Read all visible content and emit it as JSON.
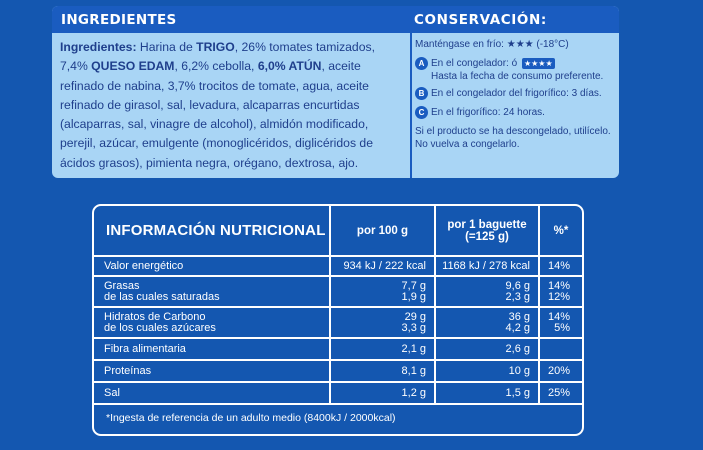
{
  "ingredients": {
    "header": "INGREDIENTES",
    "label": "Ingredientes:",
    "p1": " Harina de ",
    "trigo": "TRIGO",
    "p2": ", 26% tomates tamizados, 7,4% ",
    "queso": "QUESO EDAM",
    "p3": ", 6,2% cebolla, ",
    "atun": "6,0% ATÚN",
    "p4": ", aceite refinado de nabina, 3,7% trocitos de tomate, agua, aceite refinado de girasol, sal, levadura, alcaparras encurtidas (alcaparras, sal, vinagre de alcohol), almidón modificado, perejil, azúcar, emulgente (monoglicéridos, diglicéridos de ácidos grasos), pimienta negra, orégano, dextrosa, ajo."
  },
  "conservacion": {
    "header": "CONSERVACIÓN:",
    "freezer_line": "Manténgase en frío: ★★★ (-18°C)",
    "a_label": "En el congelador: ó",
    "a_stars": "★★★★",
    "a_sub": "Hasta la fecha de consumo preferente.",
    "b_label": "En el congelador del frigorífico: 3 días.",
    "c_label": "En el frigorífico: 24 horas.",
    "note": "Si el producto se ha descongelado, utilícelo. No vuelva a congelarlo."
  },
  "nutrition": {
    "title": "INFORMACIÓN NUTRICIONAL",
    "col1": "por 100 g",
    "col2a": "por 1 baguette",
    "col2b": "(=125 g)",
    "col3": "%*",
    "rows": [
      {
        "label": "Valor energético",
        "v100": "934 kJ / 222 kcal",
        "vbag": "1168 kJ / 278 kcal",
        "pct": "14%"
      },
      {
        "label": "Grasas",
        "sublabel": "de las cuales saturadas",
        "v100": "7,7 g",
        "v100b": "1,9 g",
        "vbag": "9,6 g",
        "vbagb": "2,3 g",
        "pct": "14%",
        "pctb": "12%"
      },
      {
        "label": "Hidratos de Carbono",
        "sublabel": "de los cuales azúcares",
        "v100": "29 g",
        "v100b": "3,3 g",
        "vbag": "36 g",
        "vbagb": "4,2 g",
        "pct": "14%",
        "pctb": "5%"
      },
      {
        "label": "Fibra alimentaria",
        "v100": "2,1 g",
        "vbag": "2,6 g",
        "pct": ""
      },
      {
        "label": "Proteínas",
        "v100": "8,1 g",
        "vbag": "10 g",
        "pct": "20%"
      },
      {
        "label": "Sal",
        "v100": "1,2 g",
        "vbag": "1,5 g",
        "pct": "25%"
      }
    ],
    "footnote": "*Ingesta de referencia de un adulto medio (8400kJ / 2000kcal)"
  }
}
